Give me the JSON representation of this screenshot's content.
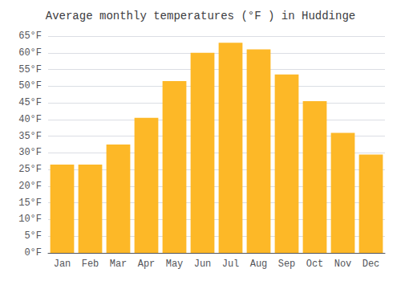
{
  "chart_data": {
    "type": "bar",
    "title": "Average monthly temperatures (°F ) in Huddinge",
    "categories": [
      "Jan",
      "Feb",
      "Mar",
      "Apr",
      "May",
      "Jun",
      "Jul",
      "Aug",
      "Sep",
      "Oct",
      "Nov",
      "Dec"
    ],
    "values": [
      26.5,
      26.5,
      32.5,
      40.5,
      51.5,
      60.0,
      63.0,
      61.0,
      53.5,
      45.5,
      36.0,
      29.5
    ],
    "color": "#FDB827",
    "ylim": [
      0,
      65
    ],
    "yticks": [
      {
        "value": 0,
        "label": "0°F"
      },
      {
        "value": 5,
        "label": "5°F"
      },
      {
        "value": 10,
        "label": "10°F"
      },
      {
        "value": 15,
        "label": "15°F"
      },
      {
        "value": 20,
        "label": "20°F"
      },
      {
        "value": 25,
        "label": "25°F"
      },
      {
        "value": 30,
        "label": "30°F"
      },
      {
        "value": 35,
        "label": "35°F"
      },
      {
        "value": 40,
        "label": "40°F"
      },
      {
        "value": 45,
        "label": "45°F"
      },
      {
        "value": 50,
        "label": "50°F"
      },
      {
        "value": 55,
        "label": "55°F"
      },
      {
        "value": 60,
        "label": "60°F"
      },
      {
        "value": 65,
        "label": "65°F"
      }
    ],
    "grid": true
  }
}
